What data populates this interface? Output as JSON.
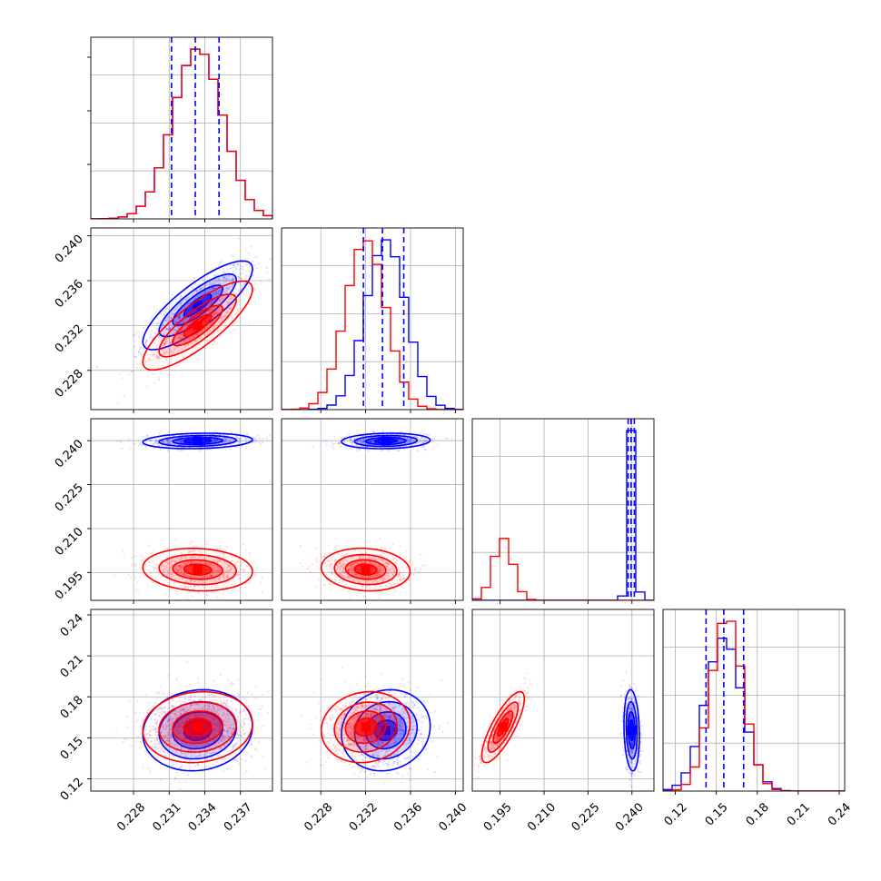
{
  "chart_data": {
    "type": "corner",
    "parameters": 4,
    "grid": true,
    "series": [
      {
        "name": "",
        "color": "#0000ff",
        "means": [
          0.2334,
          0.2338,
          0.2399,
          0.1555
        ],
        "sds": [
          0.0021,
          0.0018,
          0.0012,
          0.0135
        ],
        "correlations": {
          "0-1": 0.82,
          "0-2": 0.15,
          "0-3": 0.1,
          "1-2": 0.1,
          "1-3": 0.1,
          "2-3": -0.15
        }
      },
      {
        "name": "",
        "color": "#ff0000",
        "means": [
          0.2334,
          0.232,
          0.196,
          0.1578
        ],
        "sds": [
          0.0021,
          0.0018,
          0.0033,
          0.0118
        ],
        "correlations": {
          "0-1": 0.82,
          "0-2": -0.1,
          "0-3": 0.1,
          "1-2": -0.1,
          "1-3": 0.1,
          "2-3": 0.8
        }
      }
    ],
    "quantile_lines": {
      "color": "#0000ff",
      "style": "dashed",
      "values": [
        [
          0.2312,
          0.2332,
          0.2352
        ],
        [
          0.2318,
          0.2335,
          0.2354
        ],
        [
          0.2387,
          0.2397,
          0.2408
        ],
        [
          0.1425,
          0.1555,
          0.17
        ]
      ]
    },
    "axis_ranges": [
      [
        0.2244,
        0.2397
      ],
      [
        0.2245,
        0.2407
      ],
      [
        0.1855,
        0.2475
      ],
      [
        0.111,
        0.244
      ]
    ],
    "ticks": {
      "x": [
        [
          0.228,
          0.231,
          0.234,
          0.237
        ],
        [
          0.228,
          0.232,
          0.236,
          0.24
        ],
        [
          0.195,
          0.21,
          0.225,
          0.24
        ],
        [
          0.12,
          0.15,
          0.18,
          0.21,
          0.24
        ]
      ],
      "y": [
        [],
        [
          0.228,
          0.232,
          0.236,
          0.24
        ],
        [
          0.195,
          0.21,
          0.225,
          0.24
        ],
        [
          0.12,
          0.15,
          0.18,
          0.21,
          0.24
        ]
      ]
    },
    "tick_labels": {
      "x": [
        [
          "0.228",
          "0.231",
          "0.234",
          "0.237"
        ],
        [
          "0.228",
          "0.232",
          "0.236",
          "0.240"
        ],
        [
          "0.195",
          "0.210",
          "0.225",
          "0.240"
        ],
        [
          "0.12",
          "0.15",
          "0.18",
          "0.21",
          "0.24"
        ]
      ],
      "y": [
        [],
        [
          "0.228",
          "0.232",
          "0.236",
          "0.240"
        ],
        [
          "0.195",
          "0.210",
          "0.225",
          "0.240"
        ],
        [
          "0.12",
          "0.15",
          "0.18",
          "0.21",
          "0.24"
        ]
      ]
    }
  }
}
